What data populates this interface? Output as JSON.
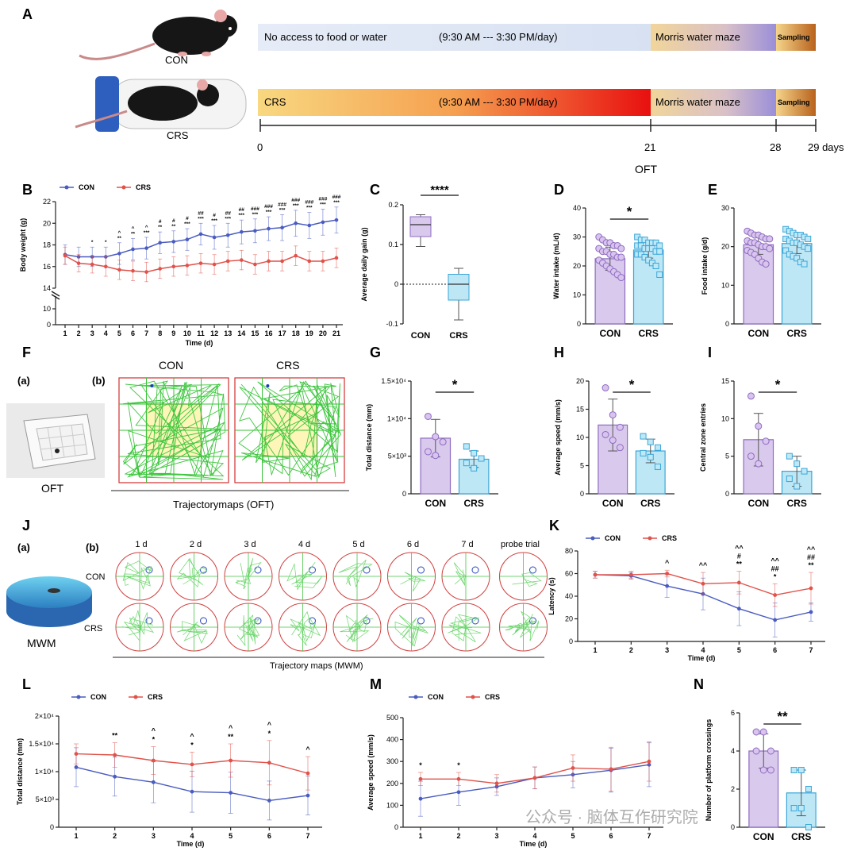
{
  "panels": {
    "A": "A",
    "B": "B",
    "C": "C",
    "D": "D",
    "E": "E",
    "F": "F",
    "G": "G",
    "H": "H",
    "I": "I",
    "J": "J",
    "K": "K",
    "L": "L",
    "M": "M",
    "N": "N"
  },
  "panelA": {
    "con_label": "CON",
    "crs_label": "CRS",
    "con_bar_text": "No access to food or water",
    "con_bar_time": "(9:30 AM --- 3:30 PM/day)",
    "crs_bar_text": "CRS",
    "crs_bar_time": "(9:30 AM  --- 3:30 PM/day)",
    "mwm_text": "Morris water maze",
    "sampling_text": "Sampling",
    "timeline_ticks": [
      "0",
      "21",
      "28",
      "29 days"
    ],
    "oft_label": "OFT",
    "colors": {
      "con_bar": "#dde6f4",
      "crs_start": "#f8d880",
      "crs_end": "#e81010",
      "mwm_start": "#f1d59a",
      "mwm_end": "#9a8fd8",
      "sampling_start": "#f5d48a",
      "sampling_end": "#b8621c"
    }
  },
  "subpanels": {
    "fa": "(a)",
    "fb": "(b)",
    "ja": "(a)",
    "jb": "(b)"
  },
  "oft": {
    "con_title": "CON",
    "crs_title": "CRS",
    "oft_caption": "OFT",
    "trajectory_caption": "Trajectorymaps (OFT)"
  },
  "mwm": {
    "days": [
      "1 d",
      "2 d",
      "3 d",
      "4 d",
      "5 d",
      "6 d",
      "7 d",
      "probe trial"
    ],
    "row_con": "CON",
    "row_crs": "CRS",
    "mwm_caption": "MWM",
    "trajectory_caption": "Trajectory maps (MWM)"
  },
  "legend": {
    "con": "CON",
    "crs": "CRS"
  },
  "colors": {
    "con": "#4a5cc0",
    "crs": "#e0524a",
    "purple_bar": "#d9c9ec",
    "purple_edge": "#8e6cc0",
    "blue_bar": "#bde7f5",
    "blue_edge": "#3aa6d8"
  },
  "watermark": "公众号 · 脑体互作研究院",
  "chart_data": [
    {
      "id": "B",
      "type": "line",
      "xlabel": "Time (d)",
      "ylabel": "Body weight (g)",
      "x": [
        1,
        2,
        3,
        4,
        5,
        6,
        7,
        8,
        9,
        10,
        11,
        12,
        13,
        14,
        15,
        16,
        17,
        18,
        19,
        20,
        21
      ],
      "ylim": [
        14,
        22
      ],
      "yticks": [
        "14",
        "16",
        "18",
        "20",
        "22"
      ],
      "ybreak_ticks": [
        "0",
        "10"
      ],
      "series": [
        {
          "name": "CON",
          "values": [
            17.1,
            16.9,
            16.9,
            16.9,
            17.2,
            17.6,
            17.7,
            18.2,
            18.3,
            18.5,
            19.0,
            18.7,
            18.9,
            19.2,
            19.3,
            19.5,
            19.6,
            20.0,
            19.8,
            20.1,
            20.3
          ],
          "error": [
            0.9,
            0.9,
            0.9,
            0.9,
            1.0,
            1.0,
            1.0,
            1.0,
            1.0,
            1.0,
            1.0,
            1.1,
            1.1,
            1.1,
            1.1,
            1.1,
            1.2,
            1.2,
            1.2,
            1.2,
            1.2
          ]
        },
        {
          "name": "CRS",
          "values": [
            17.0,
            16.3,
            16.2,
            16.0,
            15.7,
            15.6,
            15.5,
            15.8,
            16.0,
            16.1,
            16.3,
            16.2,
            16.5,
            16.6,
            16.2,
            16.5,
            16.5,
            17.0,
            16.5,
            16.5,
            16.8
          ],
          "error": [
            0.8,
            0.8,
            0.8,
            0.9,
            0.9,
            0.9,
            0.9,
            0.9,
            0.9,
            0.9,
            0.9,
            0.9,
            0.9,
            0.9,
            0.9,
            0.9,
            0.9,
            0.9,
            0.9,
            0.9,
            0.9
          ]
        }
      ],
      "annotations": [
        {
          "x": 3,
          "marks": [
            "*"
          ]
        },
        {
          "x": 4,
          "marks": [
            "*"
          ]
        },
        {
          "x": 5,
          "marks": [
            "^",
            "**"
          ]
        },
        {
          "x": 6,
          "marks": [
            "^",
            "**"
          ]
        },
        {
          "x": 7,
          "marks": [
            "^",
            "***"
          ]
        },
        {
          "x": 8,
          "marks": [
            "#",
            "**"
          ]
        },
        {
          "x": 9,
          "marks": [
            "#",
            "**"
          ]
        },
        {
          "x": 10,
          "marks": [
            "#",
            "***"
          ]
        },
        {
          "x": 11,
          "marks": [
            "##",
            "***"
          ]
        },
        {
          "x": 12,
          "marks": [
            "#",
            "***"
          ]
        },
        {
          "x": 13,
          "marks": [
            "##",
            "***"
          ]
        },
        {
          "x": 14,
          "marks": [
            "##",
            "***"
          ]
        },
        {
          "x": 15,
          "marks": [
            "###",
            "***"
          ]
        },
        {
          "x": 16,
          "marks": [
            "###",
            "***"
          ]
        },
        {
          "x": 17,
          "marks": [
            "###",
            "***"
          ]
        },
        {
          "x": 18,
          "marks": [
            "###",
            "***"
          ]
        },
        {
          "x": 19,
          "marks": [
            "###",
            "***"
          ]
        },
        {
          "x": 20,
          "marks": [
            "###",
            "***"
          ]
        },
        {
          "x": 21,
          "marks": [
            "###",
            "***"
          ]
        }
      ]
    },
    {
      "id": "C",
      "type": "box",
      "ylabel": "Average daily gain (g)",
      "categories": [
        "CON",
        "CRS"
      ],
      "ylim": [
        -0.1,
        0.2
      ],
      "yticks": [
        "-0.1",
        "0",
        "0.1",
        "0.2"
      ],
      "boxes": [
        {
          "min": 0.095,
          "q1": 0.12,
          "median": 0.15,
          "q3": 0.17,
          "max": 0.175
        },
        {
          "min": -0.09,
          "q1": -0.04,
          "median": 0.0,
          "q3": 0.025,
          "max": 0.04
        }
      ],
      "significance": "****"
    },
    {
      "id": "D",
      "type": "bar",
      "ylabel": "Water intake (mL/d)",
      "categories": [
        "CON",
        "CRS"
      ],
      "values": [
        22.5,
        25.5
      ],
      "error": [
        4.0,
        2.8
      ],
      "ylim": [
        0,
        40
      ],
      "yticks": [
        "0",
        "10",
        "20",
        "30",
        "40"
      ],
      "significance": "*",
      "points": [
        [
          30,
          29,
          28,
          28,
          27,
          27,
          26,
          26,
          25,
          25,
          24,
          24,
          23,
          23,
          22,
          21,
          20,
          19,
          18,
          17,
          16
        ],
        [
          30,
          29,
          29,
          28,
          28,
          28,
          27,
          27,
          27,
          26,
          26,
          26,
          25,
          25,
          24,
          24,
          23,
          22,
          21,
          20,
          17
        ]
      ]
    },
    {
      "id": "E",
      "type": "bar",
      "ylabel": "Food intake (g/d)",
      "categories": [
        "CON",
        "CRS"
      ],
      "values": [
        20.5,
        20.8
      ],
      "error": [
        2.5,
        2.6
      ],
      "ylim": [
        0,
        30
      ],
      "yticks": [
        "0",
        "10",
        "20",
        "30"
      ],
      "points": [
        [
          24,
          23.5,
          23,
          23,
          22.5,
          22,
          22,
          21.5,
          21,
          21,
          20.5,
          20,
          20,
          19.5,
          19,
          18.5,
          18,
          17,
          16,
          15.5
        ],
        [
          24.5,
          24,
          23.5,
          23,
          23,
          22.5,
          22,
          22,
          21.5,
          21,
          21,
          20.5,
          20,
          19.5,
          19,
          18,
          17.5,
          17,
          16,
          15.5
        ]
      ]
    },
    {
      "id": "G",
      "type": "bar",
      "ylabel": "Total distance (mm)",
      "categories": [
        "CON",
        "CRS"
      ],
      "values": [
        7400,
        4600
      ],
      "error": [
        2500,
        1100
      ],
      "ylim": [
        0,
        15000
      ],
      "yticks": [
        "0",
        "5×10³",
        "1×10⁴",
        "1.5×10⁴"
      ],
      "significance": "*",
      "points": [
        [
          10300,
          7600,
          6900,
          5600,
          5100
        ],
        [
          6300,
          5400,
          4700,
          4100,
          3400
        ]
      ]
    },
    {
      "id": "H",
      "type": "bar",
      "ylabel": "Average speed (mm/s)",
      "categories": [
        "CON",
        "CRS"
      ],
      "values": [
        12.2,
        7.6
      ],
      "error": [
        4.6,
        2.1
      ],
      "ylim": [
        0,
        20
      ],
      "yticks": [
        "0",
        "5",
        "10",
        "15",
        "20"
      ],
      "significance": "*",
      "points": [
        [
          18.8,
          14,
          11.8,
          10.5,
          9.5,
          8.2
        ],
        [
          10.2,
          9.2,
          8.2,
          7.2,
          6.5,
          4.8
        ]
      ]
    },
    {
      "id": "I",
      "type": "bar",
      "ylabel": "Central zone entries",
      "categories": [
        "CON",
        "CRS"
      ],
      "values": [
        7.2,
        3.0
      ],
      "error": [
        3.5,
        2.0
      ],
      "ylim": [
        0,
        15
      ],
      "yticks": [
        "0",
        "5",
        "10",
        "15"
      ],
      "significance": "*",
      "points": [
        [
          13,
          9,
          7,
          5,
          4
        ],
        [
          5,
          4,
          3,
          2,
          1
        ]
      ]
    },
    {
      "id": "K",
      "type": "line",
      "xlabel": "Time (d)",
      "ylabel": "Latency (s)",
      "x": [
        1,
        2,
        3,
        4,
        5,
        6,
        7
      ],
      "ylim": [
        0,
        80
      ],
      "yticks": [
        "0",
        "20",
        "40",
        "60",
        "80"
      ],
      "series": [
        {
          "name": "CON",
          "values": [
            59,
            58,
            49,
            42,
            29,
            19,
            26
          ],
          "error": [
            3,
            3,
            10,
            14,
            15,
            15,
            8
          ]
        },
        {
          "name": "CRS",
          "values": [
            59,
            59,
            60,
            51,
            52,
            41,
            47
          ],
          "error": [
            3,
            3,
            3,
            10,
            10,
            10,
            14
          ]
        }
      ],
      "annotations": [
        {
          "x": 3,
          "marks": [
            "^"
          ]
        },
        {
          "x": 4,
          "marks": [
            "^^"
          ]
        },
        {
          "x": 5,
          "marks": [
            "^^",
            "#",
            "**"
          ]
        },
        {
          "x": 6,
          "marks": [
            "^^",
            "##",
            "*"
          ]
        },
        {
          "x": 7,
          "marks": [
            "^^",
            "##",
            "**"
          ]
        }
      ]
    },
    {
      "id": "L",
      "type": "line",
      "xlabel": "Time (d)",
      "ylabel": "Total distance (mm)",
      "x": [
        1,
        2,
        3,
        4,
        5,
        6,
        7
      ],
      "ylim": [
        0,
        20000
      ],
      "yticks": [
        "0",
        "5×10³",
        "1×10⁴",
        "1.5×10⁴",
        "2×10⁴"
      ],
      "series": [
        {
          "name": "CON",
          "values": [
            10800,
            9100,
            8100,
            6400,
            6200,
            4800,
            5700
          ],
          "error": [
            3500,
            3500,
            3700,
            3700,
            3700,
            3500,
            3500
          ]
        },
        {
          "name": "CRS",
          "values": [
            13200,
            13000,
            12000,
            11300,
            12000,
            11600,
            9700
          ],
          "error": [
            1800,
            2200,
            2500,
            2200,
            3000,
            4000,
            3000
          ]
        }
      ],
      "annotations": [
        {
          "x": 2,
          "marks": [
            "**"
          ]
        },
        {
          "x": 3,
          "marks": [
            "^",
            "*"
          ]
        },
        {
          "x": 4,
          "marks": [
            "^",
            "*"
          ]
        },
        {
          "x": 5,
          "marks": [
            "^",
            "**"
          ]
        },
        {
          "x": 6,
          "marks": [
            "^",
            "*"
          ]
        },
        {
          "x": 7,
          "marks": [
            "^"
          ]
        }
      ]
    },
    {
      "id": "M",
      "type": "line",
      "xlabel": "Time (d)",
      "ylabel": "Average speed (mm/s)",
      "x": [
        1,
        2,
        3,
        4,
        5,
        6,
        7
      ],
      "ylim": [
        0,
        500
      ],
      "yticks": [
        "0",
        "100",
        "200",
        "300",
        "400",
        "500"
      ],
      "series": [
        {
          "name": "CON",
          "values": [
            130,
            160,
            185,
            225,
            240,
            260,
            285
          ],
          "error": [
            80,
            60,
            40,
            50,
            60,
            100,
            100
          ]
        },
        {
          "name": "CRS",
          "values": [
            220,
            220,
            200,
            225,
            270,
            265,
            300
          ],
          "error": [
            30,
            30,
            40,
            50,
            60,
            100,
            90
          ]
        }
      ],
      "annotations": [
        {
          "x": 1,
          "marks": [
            "*"
          ]
        },
        {
          "x": 2,
          "marks": [
            "*"
          ]
        }
      ]
    },
    {
      "id": "N",
      "type": "bar",
      "ylabel": "Number of platform crossings",
      "categories": [
        "CON",
        "CRS"
      ],
      "values": [
        4.0,
        1.8
      ],
      "error": [
        0.9,
        1.2
      ],
      "ylim": [
        0,
        6
      ],
      "yticks": [
        "0",
        "2",
        "4",
        "6"
      ],
      "significance": "**",
      "points": [
        [
          5,
          5,
          4,
          4,
          3,
          3
        ],
        [
          3,
          3,
          2,
          1,
          1,
          0
        ]
      ]
    }
  ]
}
